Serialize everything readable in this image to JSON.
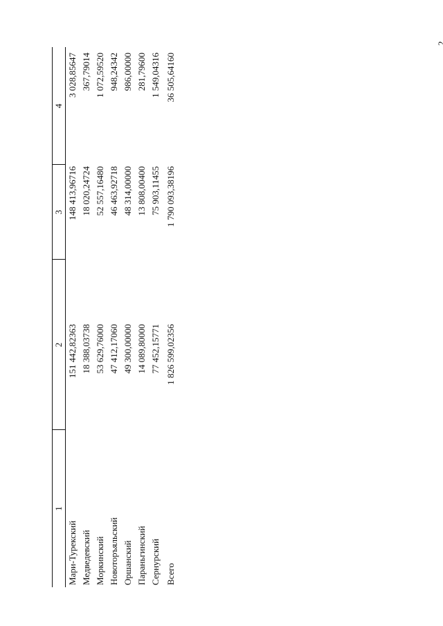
{
  "page": {
    "number": "2"
  },
  "table": {
    "headers": [
      "1",
      "2",
      "3",
      "4"
    ],
    "rows": [
      [
        "Мари-Турекский",
        "151 442,82363",
        "148 413,96716",
        "3 028,85647"
      ],
      [
        "Медведевский",
        "18 388,03738",
        "18 020,24724",
        "367,79014"
      ],
      [
        "Моркинский",
        "53 629,76000",
        "52 557,16480",
        "1 072,59520"
      ],
      [
        "Новоторъяльский",
        "47 412,17060",
        "46 463,92718",
        "948,24342"
      ],
      [
        "Оршанский",
        "49 300,00000",
        "48 314,00000",
        "986,00000"
      ],
      [
        "Параньгинский",
        "14 089,80000",
        "13 808,00400",
        "281,79600"
      ],
      [
        "Сернурский",
        "77 452,15771",
        "75 903,11455",
        "1 549,04316"
      ],
      [
        "Всего",
        "1 826 599,02356",
        "1 790 093,38196",
        "36 505,64160"
      ]
    ]
  }
}
